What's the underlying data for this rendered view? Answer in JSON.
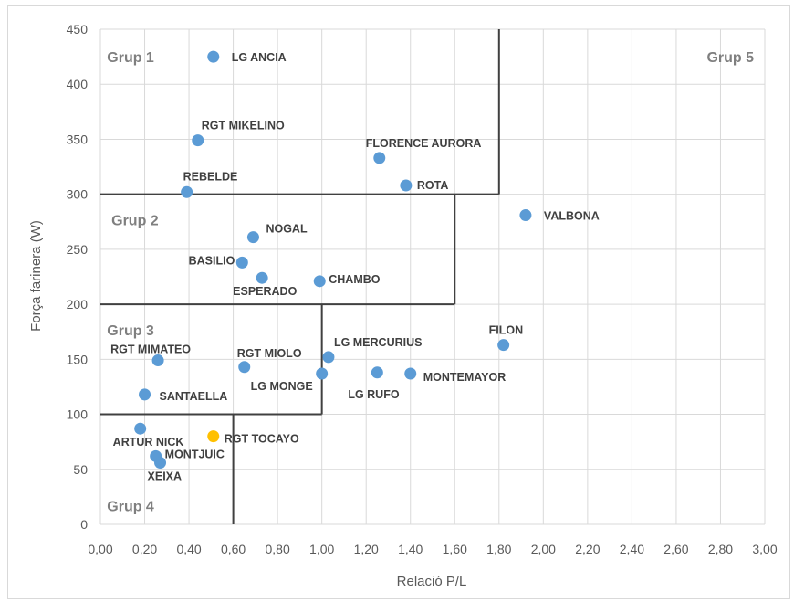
{
  "chart_data": {
    "type": "scatter",
    "xlabel": "Relació P/L",
    "ylabel": "Força farinera (W)",
    "xlim": [
      0,
      3
    ],
    "ylim": [
      0,
      450
    ],
    "x_ticks": [
      "0,00",
      "0,20",
      "0,40",
      "0,60",
      "0,80",
      "1,00",
      "1,20",
      "1,40",
      "1,60",
      "1,80",
      "2,00",
      "2,20",
      "2,40",
      "2,60",
      "2,80",
      "3,00"
    ],
    "y_ticks": [
      "0",
      "50",
      "100",
      "150",
      "200",
      "250",
      "300",
      "350",
      "400",
      "450"
    ],
    "grid": true,
    "colors": {
      "default": "#5b9bd5",
      "highlight": "#ffc000",
      "grid": "#d9d9d9",
      "boundary": "#404040"
    },
    "points": [
      {
        "name": "LG ANCIA",
        "x": 0.51,
        "y": 425
      },
      {
        "name": "RGT MIKELINO",
        "x": 0.44,
        "y": 349
      },
      {
        "name": "REBELDE",
        "x": 0.39,
        "y": 302
      },
      {
        "name": "FLORENCE AURORA",
        "x": 1.26,
        "y": 333
      },
      {
        "name": "ROTA",
        "x": 1.38,
        "y": 308
      },
      {
        "name": "VALBONA",
        "x": 1.92,
        "y": 281
      },
      {
        "name": "NOGAL",
        "x": 0.69,
        "y": 261
      },
      {
        "name": "BASILIO",
        "x": 0.64,
        "y": 238
      },
      {
        "name": "ESPERADO",
        "x": 0.73,
        "y": 224
      },
      {
        "name": "CHAMBO",
        "x": 0.99,
        "y": 221
      },
      {
        "name": "FILON",
        "x": 1.82,
        "y": 163
      },
      {
        "name": "LG MERCURIUS",
        "x": 1.03,
        "y": 152
      },
      {
        "name": "RGT MIMATEO",
        "x": 0.26,
        "y": 149
      },
      {
        "name": "RGT MIOLO",
        "x": 0.65,
        "y": 143
      },
      {
        "name": "LG MONGE",
        "x": 1.0,
        "y": 137
      },
      {
        "name": "LG RUFO",
        "x": 1.25,
        "y": 138
      },
      {
        "name": "MONTEMAYOR",
        "x": 1.4,
        "y": 137
      },
      {
        "name": "SANTAELLA",
        "x": 0.2,
        "y": 118
      },
      {
        "name": "ARTUR NICK",
        "x": 0.18,
        "y": 87
      },
      {
        "name": "RGT TOCAYO",
        "x": 0.51,
        "y": 80,
        "highlight": true
      },
      {
        "name": "MONTJUIC",
        "x": 0.25,
        "y": 62
      },
      {
        "name": "XEIXA",
        "x": 0.27,
        "y": 56
      }
    ],
    "groups": [
      "Grup 1",
      "Grup 2",
      "Grup 3",
      "Grup 4",
      "Grup 5"
    ],
    "boundaries": [
      {
        "from": [
          0,
          300
        ],
        "to": [
          1.8,
          300
        ]
      },
      {
        "from": [
          1.8,
          300
        ],
        "to": [
          1.8,
          450
        ]
      },
      {
        "from": [
          1.6,
          300
        ],
        "to": [
          1.6,
          200
        ]
      },
      {
        "from": [
          0,
          200
        ],
        "to": [
          1.6,
          200
        ]
      },
      {
        "from": [
          1.0,
          200
        ],
        "to": [
          1.0,
          100
        ]
      },
      {
        "from": [
          0,
          100
        ],
        "to": [
          1.0,
          100
        ]
      },
      {
        "from": [
          0.6,
          100
        ],
        "to": [
          0.6,
          0
        ]
      }
    ]
  }
}
